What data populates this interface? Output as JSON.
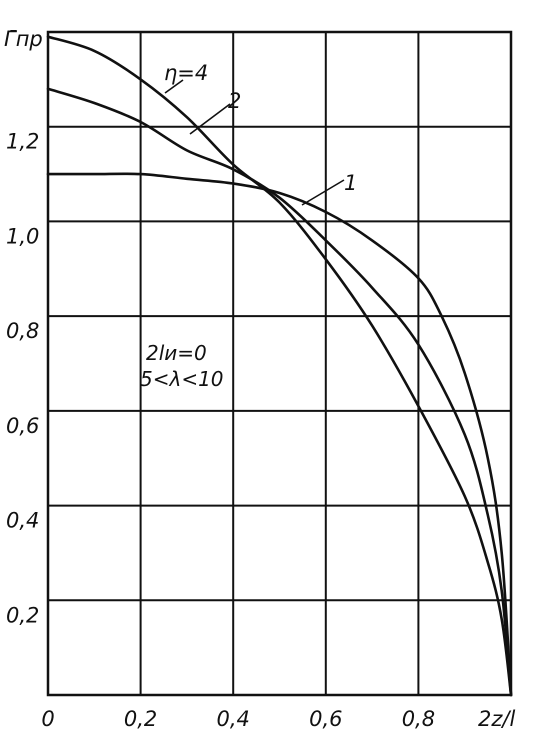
{
  "chart_data": {
    "type": "line",
    "title": "",
    "ylabel": "Γ̄пр",
    "xlabel": "2z/l",
    "xlim": [
      0,
      1.0
    ],
    "ylim": [
      0,
      1.4
    ],
    "grid": true,
    "x_ticks": [
      {
        "value": 0,
        "label": "0"
      },
      {
        "value": 0.2,
        "label": "0,2"
      },
      {
        "value": 0.4,
        "label": "0,4"
      },
      {
        "value": 0.6,
        "label": "0,6"
      },
      {
        "value": 0.8,
        "label": "0,8"
      }
    ],
    "y_ticks": [
      {
        "value": 0.2,
        "label": "0,2"
      },
      {
        "value": 0.4,
        "label": "0,4"
      },
      {
        "value": 0.6,
        "label": "0,6"
      },
      {
        "value": 0.8,
        "label": "0,8"
      },
      {
        "value": 1.0,
        "label": "1,0"
      },
      {
        "value": 1.2,
        "label": "1,2"
      }
    ],
    "annotations": [
      "2lи=0",
      "5<λ<10"
    ],
    "series": [
      {
        "name": "η=4",
        "x": [
          0,
          0.1,
          0.2,
          0.3,
          0.4,
          0.5,
          0.6,
          0.7,
          0.8,
          0.9,
          0.95,
          0.98,
          1.0
        ],
        "y": [
          1.39,
          1.36,
          1.3,
          1.22,
          1.12,
          1.04,
          0.92,
          0.78,
          0.61,
          0.42,
          0.28,
          0.16,
          0.0
        ]
      },
      {
        "name": "2",
        "x": [
          0,
          0.1,
          0.2,
          0.3,
          0.4,
          0.5,
          0.6,
          0.7,
          0.8,
          0.9,
          0.95,
          0.98,
          1.0
        ],
        "y": [
          1.28,
          1.25,
          1.21,
          1.15,
          1.11,
          1.05,
          0.96,
          0.86,
          0.74,
          0.55,
          0.38,
          0.22,
          0.0
        ]
      },
      {
        "name": "1",
        "x": [
          0,
          0.1,
          0.2,
          0.3,
          0.4,
          0.5,
          0.6,
          0.7,
          0.8,
          0.85,
          0.9,
          0.95,
          0.98,
          1.0
        ],
        "y": [
          1.1,
          1.1,
          1.1,
          1.09,
          1.08,
          1.06,
          1.02,
          0.96,
          0.88,
          0.8,
          0.68,
          0.5,
          0.3,
          0.0
        ]
      }
    ]
  }
}
